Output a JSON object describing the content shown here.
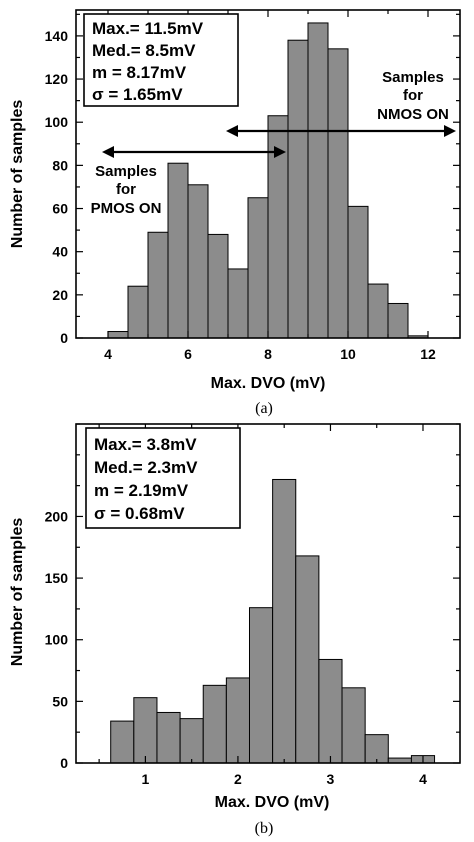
{
  "chart_data": [
    {
      "type": "bar",
      "panel_label": "(a)",
      "xlabel": "Max. DVO (mV)",
      "ylabel": "Number of samples",
      "xlim": [
        3.2,
        12.8
      ],
      "ylim": [
        0,
        152
      ],
      "xticks": [
        4,
        6,
        8,
        10,
        12
      ],
      "yticks": [
        0,
        20,
        40,
        60,
        80,
        100,
        120,
        140
      ],
      "bin_width": 0.5,
      "bins": [
        4.25,
        4.75,
        5.25,
        5.75,
        6.25,
        6.75,
        7.25,
        7.75,
        8.25,
        8.75,
        9.25,
        9.75,
        10.25,
        10.75,
        11.25,
        11.75,
        12.25
      ],
      "values": [
        3,
        24,
        49,
        81,
        71,
        48,
        32,
        65,
        103,
        138,
        146,
        134,
        61,
        25,
        16,
        1,
        0
      ],
      "stats": [
        "Max.= 11.5mV",
        "Med.= 8.5mV",
        "m = 8.17mV",
        "σ = 1.65mV"
      ],
      "annotations": [
        {
          "lines": [
            "Samples",
            "for",
            "PMOS ON"
          ],
          "range": [
            4.0,
            8.6
          ]
        },
        {
          "lines": [
            "Samples",
            "for",
            "NMOS ON"
          ],
          "range": [
            7.5,
            12.5
          ]
        }
      ],
      "grid": false
    },
    {
      "type": "bar",
      "panel_label": "(b)",
      "xlabel": "Max. DVO (mV)",
      "ylabel": "Number of samples",
      "xlim": [
        0.25,
        4.4
      ],
      "ylim": [
        0,
        275
      ],
      "xticks": [
        1,
        2,
        3,
        4
      ],
      "yticks": [
        0,
        50,
        100,
        150,
        200
      ],
      "bin_width": 0.25,
      "bins": [
        0.75,
        1.0,
        1.25,
        1.5,
        1.75,
        2.0,
        2.25,
        2.5,
        2.75,
        3.0,
        3.25,
        3.5,
        3.75,
        4.0
      ],
      "values": [
        34,
        53,
        41,
        36,
        63,
        69,
        126,
        230,
        168,
        84,
        61,
        23,
        4,
        6
      ],
      "stats": [
        "Max.= 3.8mV",
        "Med.= 2.3mV",
        "m = 2.19mV",
        "σ = 0.68mV"
      ],
      "grid": false
    }
  ]
}
